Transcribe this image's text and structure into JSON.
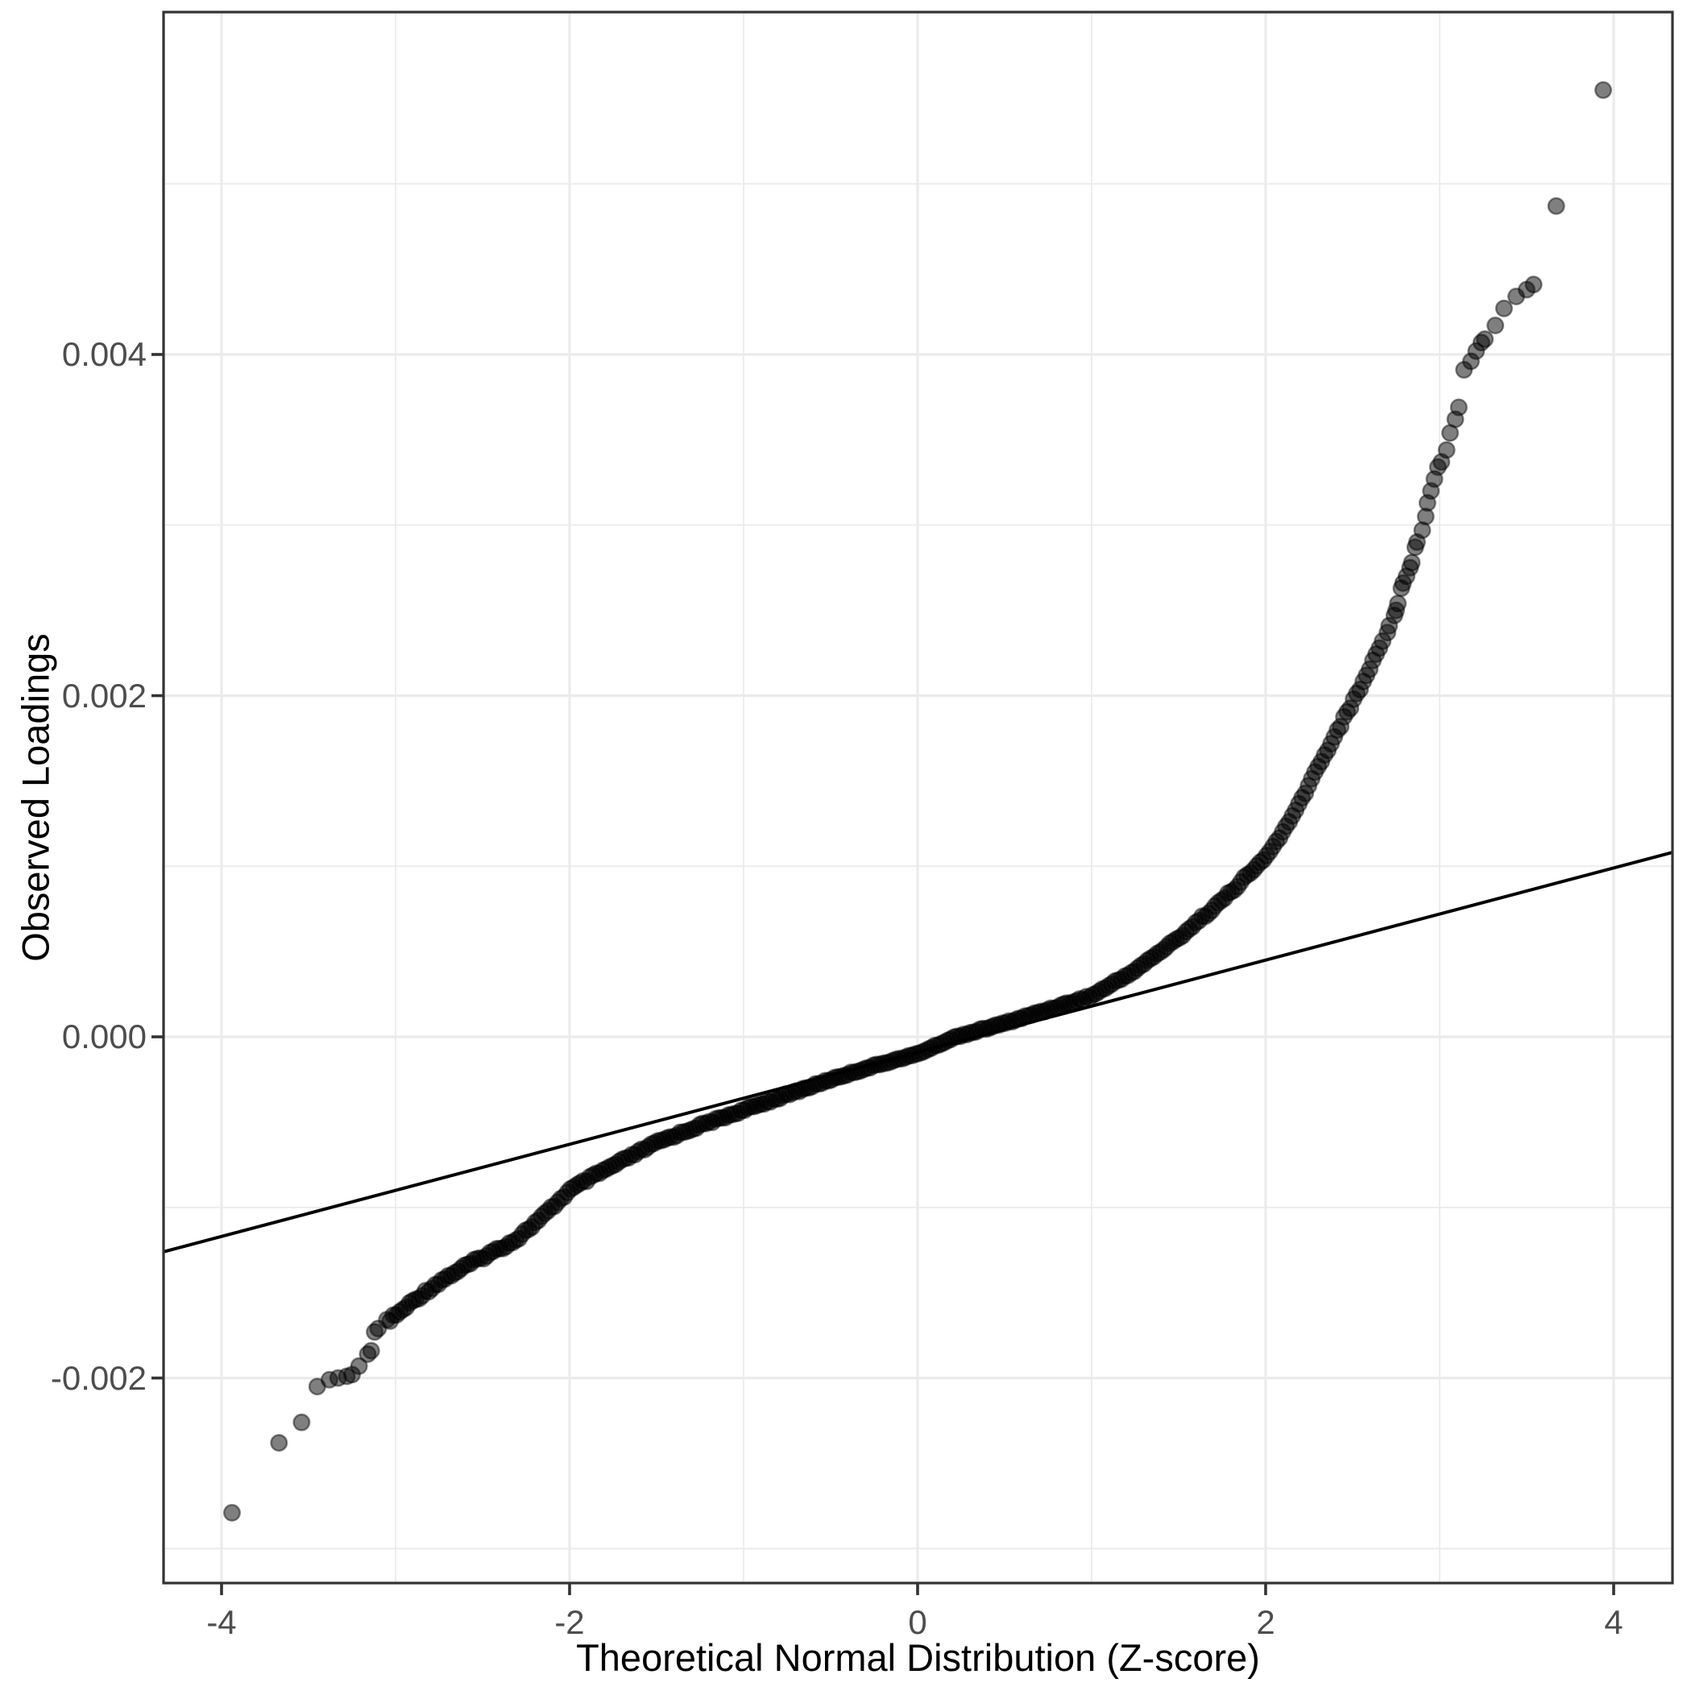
{
  "chart_data": {
    "type": "scatter",
    "subtype": "qq-plot",
    "title": "",
    "xlabel": "Theoretical Normal Distribution (Z-score)",
    "ylabel": "Observed Loadings",
    "x_tick_labels": [
      "-4",
      "-2",
      "0",
      "2",
      "4"
    ],
    "y_tick_labels": [
      "-0.002",
      "0.000",
      "0.002",
      "0.004"
    ],
    "x_major_ticks": [
      -4,
      -2,
      0,
      2,
      4
    ],
    "x_minor_ticks": [
      -3,
      -1,
      1,
      3
    ],
    "y_major_ticks": [
      -0.002,
      0,
      0.002,
      0.004
    ],
    "y_minor_ticks": [
      -0.003,
      -0.001,
      0.001,
      0.003,
      0.005
    ],
    "xlim": [
      -4.34,
      4.34
    ],
    "ylim": [
      -0.0032,
      0.006
    ],
    "grid": "on",
    "legend": "none",
    "n_points_approx": 12000,
    "reference_line": {
      "intercept": -9e-05,
      "slope": 0.00027
    },
    "dense_band_range": [
      -3.05,
      2.68
    ],
    "quantile_curve": [
      [
        -3.05,
        -0.00167
      ],
      [
        -2.97,
        -0.00161
      ],
      [
        -2.9,
        -0.00155
      ],
      [
        -2.82,
        -0.00149
      ],
      [
        -2.74,
        -0.00143
      ],
      [
        -2.59,
        -0.00134
      ],
      [
        -2.44,
        -0.00126
      ],
      [
        -2.31,
        -0.00119
      ],
      [
        -2.15,
        -0.00105
      ],
      [
        -2.0,
        -0.0009
      ],
      [
        -1.85,
        -0.00081
      ],
      [
        -1.5,
        -0.00062
      ],
      [
        -1.25,
        -0.00052
      ],
      [
        -1.0,
        -0.00043
      ],
      [
        -0.75,
        -0.00034
      ],
      [
        -0.5,
        -0.00025
      ],
      [
        -0.25,
        -0.00017
      ],
      [
        0.0,
        -0.0001
      ],
      [
        0.22,
        0.0
      ],
      [
        0.5,
        8e-05
      ],
      [
        0.75,
        0.00016
      ],
      [
        1.0,
        0.00024
      ],
      [
        1.25,
        0.00039
      ],
      [
        1.5,
        0.00058
      ],
      [
        1.75,
        0.0008
      ],
      [
        2.0,
        0.00105
      ],
      [
        2.15,
        0.00128
      ],
      [
        2.28,
        0.00154
      ],
      [
        2.4,
        0.00177
      ],
      [
        2.5,
        0.00196
      ],
      [
        2.57,
        0.0021
      ],
      [
        2.64,
        0.00225
      ],
      [
        2.68,
        0.00235
      ]
    ],
    "left_tail_points": [
      [
        -3.94,
        -0.00279
      ],
      [
        -3.67,
        -0.00238
      ],
      [
        -3.54,
        -0.00226
      ],
      [
        -3.45,
        -0.00205
      ],
      [
        -3.38,
        -0.00201
      ],
      [
        -3.33,
        -0.002
      ],
      [
        -3.28,
        -0.00199
      ],
      [
        -3.25,
        -0.00198
      ],
      [
        -3.21,
        -0.00193
      ],
      [
        -3.16,
        -0.00186
      ],
      [
        -3.14,
        -0.00184
      ],
      [
        -3.12,
        -0.00173
      ],
      [
        -3.1,
        -0.00171
      ]
    ],
    "right_tail_points": [
      [
        2.7,
        0.00237
      ],
      [
        2.71,
        0.00241
      ],
      [
        2.74,
        0.00247
      ],
      [
        2.75,
        0.0025
      ],
      [
        2.76,
        0.00254
      ],
      [
        2.78,
        0.00263
      ],
      [
        2.79,
        0.00266
      ],
      [
        2.81,
        0.0027
      ],
      [
        2.83,
        0.00275
      ],
      [
        2.84,
        0.00278
      ],
      [
        2.86,
        0.00287
      ],
      [
        2.87,
        0.0029
      ],
      [
        2.9,
        0.00297
      ],
      [
        2.92,
        0.00305
      ],
      [
        2.93,
        0.00313
      ],
      [
        2.95,
        0.0032
      ],
      [
        2.97,
        0.00327
      ],
      [
        2.99,
        0.00334
      ],
      [
        3.01,
        0.00337
      ],
      [
        3.04,
        0.00344
      ],
      [
        3.06,
        0.00354
      ],
      [
        3.09,
        0.00362
      ],
      [
        3.11,
        0.00369
      ],
      [
        3.14,
        0.00391
      ],
      [
        3.18,
        0.00396
      ],
      [
        3.21,
        0.00402
      ],
      [
        3.24,
        0.00407
      ],
      [
        3.26,
        0.00409
      ],
      [
        3.32,
        0.00417
      ],
      [
        3.37,
        0.00427
      ],
      [
        3.44,
        0.00434
      ],
      [
        3.5,
        0.00438
      ],
      [
        3.54,
        0.00441
      ],
      [
        3.67,
        0.00487
      ],
      [
        3.94,
        0.00555
      ]
    ],
    "style": {
      "background": "#ffffff",
      "panel_background": "#ffffff",
      "panel_border_color": "#333333",
      "grid_major_color": "#ebebeb",
      "grid_minor_color": "#ebebeb",
      "tick_mark_color": "#333333",
      "tick_label_color": "#4d4d4d",
      "axis_title_color": "#000000",
      "point_color": "#000000",
      "point_alpha": 0.5,
      "reference_line_color": "#000000"
    }
  }
}
